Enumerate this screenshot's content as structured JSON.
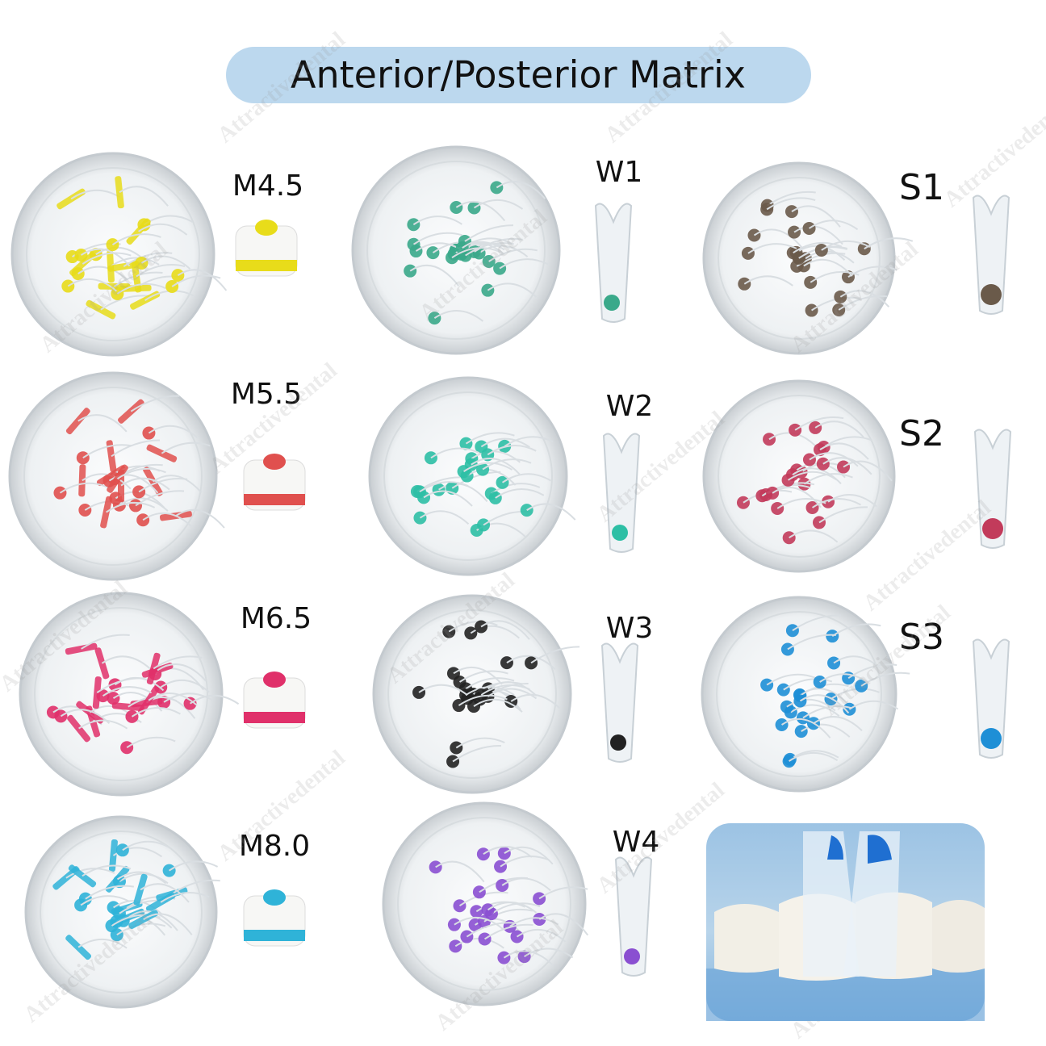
{
  "title": "Anterior/Posterior Matrix",
  "watermark": "Attractivedental",
  "products": [
    {
      "label": "M4.5"
    },
    {
      "label": "M5.5"
    },
    {
      "label": "M6.5"
    },
    {
      "label": "M8.0"
    },
    {
      "label": "W1"
    },
    {
      "label": "W2"
    },
    {
      "label": "W3"
    },
    {
      "label": "W4"
    },
    {
      "label": "S1"
    },
    {
      "label": "S2"
    },
    {
      "label": "S3"
    }
  ]
}
